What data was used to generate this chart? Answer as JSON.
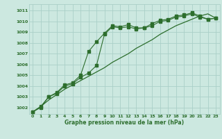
{
  "title": "Graphe pression niveau de la mer (hPa)",
  "bg_color": "#cce8e0",
  "grid_color": "#aacfc8",
  "line_color": "#2d6e2d",
  "xlim": [
    -0.5,
    23.5
  ],
  "ylim": [
    1001.4,
    1011.6
  ],
  "xticks": [
    0,
    1,
    2,
    3,
    4,
    5,
    6,
    7,
    8,
    9,
    10,
    11,
    12,
    13,
    14,
    15,
    16,
    17,
    18,
    19,
    20,
    21,
    22,
    23
  ],
  "yticks": [
    1002,
    1003,
    1004,
    1005,
    1006,
    1007,
    1008,
    1009,
    1010,
    1011
  ],
  "series_straight_x": [
    0,
    1,
    2,
    3,
    4,
    5,
    6,
    7,
    8,
    9,
    10,
    11,
    12,
    13,
    14,
    15,
    16,
    17,
    18,
    19,
    20,
    21,
    22,
    23
  ],
  "series_straight_y": [
    1001.6,
    1002.1,
    1002.7,
    1003.2,
    1003.7,
    1004.1,
    1004.5,
    1004.9,
    1005.3,
    1005.7,
    1006.2,
    1006.6,
    1007.0,
    1007.5,
    1007.9,
    1008.3,
    1008.8,
    1009.2,
    1009.6,
    1009.9,
    1010.2,
    1010.5,
    1010.7,
    1010.3
  ],
  "series_mid_x": [
    0,
    1,
    2,
    3,
    4,
    5,
    6,
    7,
    8,
    9,
    10,
    11,
    12,
    13,
    14,
    15,
    16,
    17,
    18,
    19,
    20,
    21,
    22,
    23
  ],
  "series_mid_y": [
    1001.6,
    1002.1,
    1003.0,
    1003.3,
    1004.0,
    1004.2,
    1004.8,
    1005.2,
    1005.9,
    1008.8,
    1009.5,
    1009.4,
    1009.5,
    1009.3,
    1009.4,
    1009.6,
    1010.0,
    1010.1,
    1010.4,
    1010.5,
    1010.7,
    1010.4,
    1010.2,
    1010.3
  ],
  "series_top_x": [
    0,
    1,
    2,
    3,
    4,
    5,
    6,
    7,
    8,
    9,
    10,
    11,
    12,
    13,
    14,
    15,
    16,
    17,
    18,
    19,
    20,
    21,
    22,
    23
  ],
  "series_top_y": [
    1001.6,
    1002.0,
    1003.0,
    1003.4,
    1004.1,
    1004.3,
    1005.0,
    1007.2,
    1008.1,
    1008.9,
    1009.6,
    1009.5,
    1009.7,
    1009.4,
    1009.4,
    1009.8,
    1010.1,
    1010.2,
    1010.5,
    1010.6,
    1010.8,
    1010.5,
    1010.2,
    1010.3
  ]
}
